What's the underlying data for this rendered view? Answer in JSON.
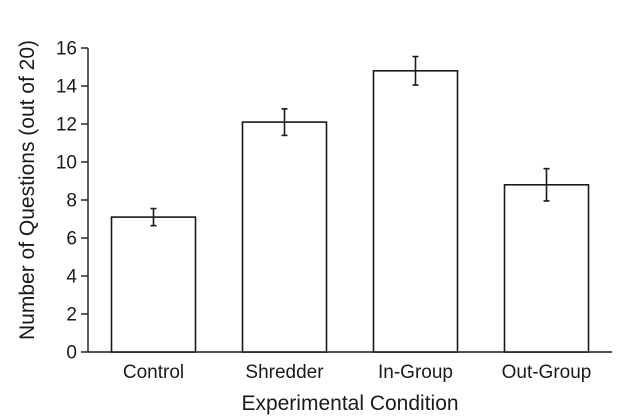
{
  "chart_data": {
    "type": "bar",
    "categories": [
      "Control",
      "Shredder",
      "In-Group",
      "Out-Group"
    ],
    "values": [
      7.1,
      12.1,
      14.8,
      8.8
    ],
    "error": [
      0.45,
      0.7,
      0.75,
      0.85
    ],
    "title": "",
    "xlabel": "Experimental Condition",
    "ylabel": "Number of Questions (out of 20)",
    "ylim": [
      0,
      16
    ],
    "yticks": [
      0,
      2,
      4,
      6,
      8,
      10,
      12,
      14,
      16
    ],
    "grid": false,
    "colors": {
      "bar_fill": "#ffffff",
      "bar_stroke": "#1a1a1a"
    }
  }
}
